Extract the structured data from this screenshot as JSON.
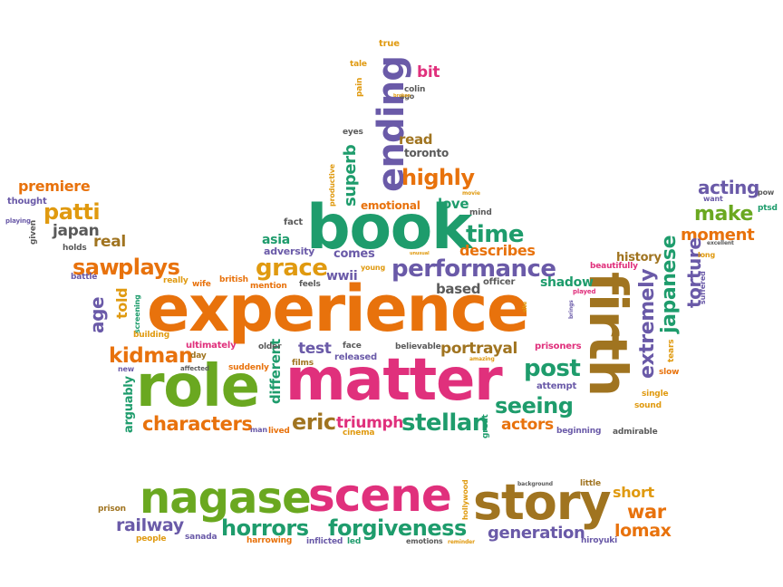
{
  "palette": {
    "orange": "#e8720c",
    "magenta": "#e0307c",
    "green": "#1e9c6c",
    "brown": "#a07420",
    "purple": "#6a5aa8",
    "grey": "#5a5a5a",
    "gold": "#e09a10",
    "lime": "#6aa820"
  },
  "words": [
    {
      "text": "experience",
      "color": "orange"
    },
    {
      "text": "matter",
      "color": "magenta"
    },
    {
      "text": "role",
      "color": "lime"
    },
    {
      "text": "book",
      "color": "green"
    },
    {
      "text": "firth",
      "color": "brown"
    },
    {
      "text": "nagase",
      "color": "lime"
    },
    {
      "text": "scene",
      "color": "magenta"
    },
    {
      "text": "story",
      "color": "brown"
    },
    {
      "text": "ending",
      "color": "purple"
    },
    {
      "text": "performance",
      "color": "purple"
    },
    {
      "text": "grace",
      "color": "gold"
    },
    {
      "text": "highly",
      "color": "orange"
    },
    {
      "text": "time",
      "color": "green"
    },
    {
      "text": "describes",
      "color": "orange"
    },
    {
      "text": "post",
      "color": "green"
    },
    {
      "text": "seeing",
      "color": "green"
    },
    {
      "text": "stellan",
      "color": "green"
    },
    {
      "text": "eric",
      "color": "brown"
    },
    {
      "text": "triumph",
      "color": "magenta"
    },
    {
      "text": "characters",
      "color": "orange"
    },
    {
      "text": "kidman",
      "color": "orange"
    },
    {
      "text": "saw",
      "color": "orange"
    },
    {
      "text": "plays",
      "color": "orange"
    },
    {
      "text": "patti",
      "color": "gold"
    },
    {
      "text": "premiere",
      "color": "orange"
    },
    {
      "text": "japan",
      "color": "grey"
    },
    {
      "text": "real",
      "color": "brown"
    },
    {
      "text": "acting",
      "color": "purple"
    },
    {
      "text": "make",
      "color": "lime"
    },
    {
      "text": "moment",
      "color": "orange"
    },
    {
      "text": "japanese",
      "color": "green"
    },
    {
      "text": "extremely",
      "color": "purple"
    },
    {
      "text": "torture",
      "color": "purple"
    },
    {
      "text": "horrors",
      "color": "green"
    },
    {
      "text": "forgiveness",
      "color": "green"
    },
    {
      "text": "railway",
      "color": "purple"
    },
    {
      "text": "generation",
      "color": "purple"
    },
    {
      "text": "war",
      "color": "orange"
    },
    {
      "text": "lomax",
      "color": "orange"
    },
    {
      "text": "short",
      "color": "gold"
    },
    {
      "text": "actors",
      "color": "orange"
    },
    {
      "text": "test",
      "color": "purple"
    },
    {
      "text": "portrayal",
      "color": "brown"
    },
    {
      "text": "based",
      "color": "grey"
    },
    {
      "text": "shadow",
      "color": "green"
    },
    {
      "text": "history",
      "color": "brown"
    },
    {
      "text": "beautifully",
      "color": "magenta"
    },
    {
      "text": "bit",
      "color": "magenta"
    },
    {
      "text": "read",
      "color": "brown"
    },
    {
      "text": "toronto",
      "color": "grey"
    },
    {
      "text": "superb",
      "color": "green"
    },
    {
      "text": "emotional",
      "color": "orange"
    },
    {
      "text": "love",
      "color": "green"
    },
    {
      "text": "comes",
      "color": "purple"
    },
    {
      "text": "asia",
      "color": "green"
    },
    {
      "text": "adversity",
      "color": "purple"
    },
    {
      "text": "wwii",
      "color": "purple"
    },
    {
      "text": "fact",
      "color": "grey"
    },
    {
      "text": "age",
      "color": "purple"
    },
    {
      "text": "told",
      "color": "gold"
    },
    {
      "text": "arguably",
      "color": "green"
    },
    {
      "text": "different",
      "color": "green"
    },
    {
      "text": "released",
      "color": "purple"
    },
    {
      "text": "officer",
      "color": "grey"
    },
    {
      "text": "prisoners",
      "color": "magenta"
    },
    {
      "text": "attempt",
      "color": "purple"
    },
    {
      "text": "tears",
      "color": "gold"
    },
    {
      "text": "slow",
      "color": "orange"
    },
    {
      "text": "single",
      "color": "gold"
    },
    {
      "text": "sound",
      "color": "gold"
    },
    {
      "text": "admirable",
      "color": "grey"
    },
    {
      "text": "beginning",
      "color": "purple"
    },
    {
      "text": "great",
      "color": "green"
    },
    {
      "text": "cinema",
      "color": "gold"
    },
    {
      "text": "true",
      "color": "gold"
    },
    {
      "text": "tale",
      "color": "gold"
    },
    {
      "text": "pain",
      "color": "gold"
    },
    {
      "text": "colin",
      "color": "grey"
    },
    {
      "text": "ago",
      "color": "grey"
    },
    {
      "text": "eyes",
      "color": "grey"
    },
    {
      "text": "productive",
      "color": "gold"
    },
    {
      "text": "mind",
      "color": "grey"
    },
    {
      "text": "movie",
      "color": "gold"
    },
    {
      "text": "thought",
      "color": "purple"
    },
    {
      "text": "given",
      "color": "grey"
    },
    {
      "text": "playing",
      "color": "purple"
    },
    {
      "text": "holds",
      "color": "grey"
    },
    {
      "text": "battle",
      "color": "purple"
    },
    {
      "text": "really",
      "color": "gold"
    },
    {
      "text": "wife",
      "color": "orange"
    },
    {
      "text": "british",
      "color": "orange"
    },
    {
      "text": "mention",
      "color": "orange"
    },
    {
      "text": "feels",
      "color": "grey"
    },
    {
      "text": "young",
      "color": "gold"
    },
    {
      "text": "screening",
      "color": "green"
    },
    {
      "text": "building",
      "color": "gold"
    },
    {
      "text": "ultimately",
      "color": "magenta"
    },
    {
      "text": "day",
      "color": "brown"
    },
    {
      "text": "older",
      "color": "grey"
    },
    {
      "text": "face",
      "color": "grey"
    },
    {
      "text": "believable",
      "color": "grey"
    },
    {
      "text": "new",
      "color": "purple"
    },
    {
      "text": "affected",
      "color": "grey"
    },
    {
      "text": "suddenly",
      "color": "orange"
    },
    {
      "text": "films",
      "color": "brown"
    },
    {
      "text": "amazing",
      "color": "gold"
    },
    {
      "text": "lived",
      "color": "orange"
    },
    {
      "text": "man",
      "color": "purple"
    },
    {
      "text": "want",
      "color": "purple"
    },
    {
      "text": "pow",
      "color": "grey"
    },
    {
      "text": "ptsd",
      "color": "green"
    },
    {
      "text": "excellent",
      "color": "grey"
    },
    {
      "text": "long",
      "color": "gold"
    },
    {
      "text": "suffered",
      "color": "purple"
    },
    {
      "text": "played",
      "color": "magenta"
    },
    {
      "text": "brings",
      "color": "purple"
    },
    {
      "text": "site",
      "color": "gold"
    },
    {
      "text": "unusual",
      "color": "gold"
    },
    {
      "text": "broken",
      "color": "gold"
    },
    {
      "text": "prison",
      "color": "brown"
    },
    {
      "text": "people",
      "color": "gold"
    },
    {
      "text": "sanada",
      "color": "purple"
    },
    {
      "text": "harrowing",
      "color": "orange"
    },
    {
      "text": "inflicted",
      "color": "purple"
    },
    {
      "text": "led",
      "color": "green"
    },
    {
      "text": "emotions",
      "color": "grey"
    },
    {
      "text": "reminder",
      "color": "gold"
    },
    {
      "text": "hiroyuki",
      "color": "purple"
    },
    {
      "text": "hollywood",
      "color": "gold"
    },
    {
      "text": "background",
      "color": "grey"
    },
    {
      "text": "little",
      "color": "brown"
    }
  ]
}
